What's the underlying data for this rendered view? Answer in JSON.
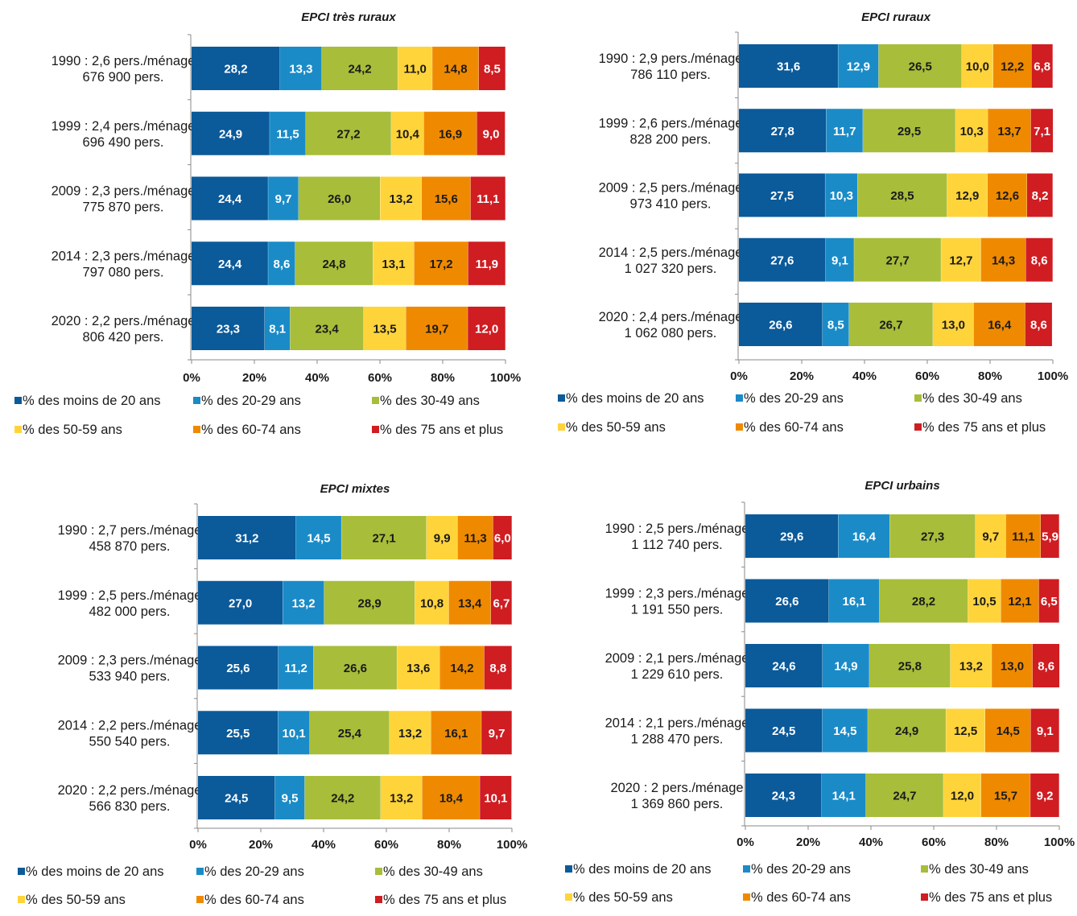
{
  "series_names": [
    "% des moins de 20 ans",
    "% des 20-29 ans",
    "% des 30-49 ans",
    "% des 50-59 ans",
    "% des 60-74 ans",
    "% des 75 ans et plus"
  ],
  "series_colors": [
    "#0b5a9a",
    "#1a8bc7",
    "#a8bd3a",
    "#ffd43b",
    "#ef8a00",
    "#cf1d22"
  ],
  "label_colors": [
    "#ffffff",
    "#ffffff",
    "#1a1a1a",
    "#1a1a1a",
    "#1a1a1a",
    "#ffffff"
  ],
  "chart_data": [
    {
      "type": "bar",
      "orientation": "horizontal-stacked-100",
      "title": "EPCI très ruraux",
      "xlim": [
        0,
        100
      ],
      "x_ticks": [
        "0%",
        "20%",
        "40%",
        "60%",
        "80%",
        "100%"
      ],
      "rows": [
        {
          "line1": "1990 : 2,6 pers./ménage",
          "line2": "676 900 pers.",
          "values": [
            28.2,
            13.3,
            24.2,
            11.0,
            14.8,
            8.5
          ],
          "labels": [
            "28,2",
            "13,3",
            "24,2",
            "11,0",
            "14,8",
            "8,5"
          ]
        },
        {
          "line1": "1999 : 2,4 pers./ménage",
          "line2": "696 490 pers.",
          "values": [
            24.9,
            11.5,
            27.2,
            10.4,
            16.9,
            9.0
          ],
          "labels": [
            "24,9",
            "11,5",
            "27,2",
            "10,4",
            "16,9",
            "9,0"
          ]
        },
        {
          "line1": "2009 : 2,3 pers./ménage",
          "line2": "775 870 pers.",
          "values": [
            24.4,
            9.7,
            26.0,
            13.2,
            15.6,
            11.1
          ],
          "labels": [
            "24,4",
            "9,7",
            "26,0",
            "13,2",
            "15,6",
            "11,1"
          ]
        },
        {
          "line1": "2014 : 2,3 pers./ménage",
          "line2": "797 080 pers.",
          "values": [
            24.4,
            8.6,
            24.8,
            13.1,
            17.2,
            11.9
          ],
          "labels": [
            "24,4",
            "8,6",
            "24,8",
            "13,1",
            "17,2",
            "11,9"
          ]
        },
        {
          "line1": "2020 : 2,2 pers./ménage",
          "line2": "806 420 pers.",
          "values": [
            23.3,
            8.1,
            23.4,
            13.5,
            19.7,
            12.0
          ],
          "labels": [
            "23,3",
            "8,1",
            "23,4",
            "13,5",
            "19,7",
            "12,0"
          ]
        }
      ]
    },
    {
      "type": "bar",
      "orientation": "horizontal-stacked-100",
      "title": "EPCI ruraux",
      "xlim": [
        0,
        100
      ],
      "x_ticks": [
        "0%",
        "20%",
        "40%",
        "60%",
        "80%",
        "100%"
      ],
      "rows": [
        {
          "line1": "1990 : 2,9 pers./ménage",
          "line2": "786 110 pers.",
          "values": [
            31.6,
            12.9,
            26.5,
            10.0,
            12.2,
            6.8
          ],
          "labels": [
            "31,6",
            "12,9",
            "26,5",
            "10,0",
            "12,2",
            "6,8"
          ]
        },
        {
          "line1": "1999 : 2,6 pers./ménage",
          "line2": "828 200 pers.",
          "values": [
            27.8,
            11.7,
            29.5,
            10.3,
            13.7,
            7.1
          ],
          "labels": [
            "27,8",
            "11,7",
            "29,5",
            "10,3",
            "13,7",
            "7,1"
          ]
        },
        {
          "line1": "2009 : 2,5 pers./ménage",
          "line2": "973 410 pers.",
          "values": [
            27.5,
            10.3,
            28.5,
            12.9,
            12.6,
            8.2
          ],
          "labels": [
            "27,5",
            "10,3",
            "28,5",
            "12,9",
            "12,6",
            "8,2"
          ]
        },
        {
          "line1": "2014 : 2,5 pers./ménage",
          "line2": "1 027 320 pers.",
          "values": [
            27.6,
            9.1,
            27.7,
            12.7,
            14.3,
            8.6
          ],
          "labels": [
            "27,6",
            "9,1",
            "27,7",
            "12,7",
            "14,3",
            "8,6"
          ]
        },
        {
          "line1": "2020 : 2,4 pers./ménage",
          "line2": "1 062 080 pers.",
          "values": [
            26.6,
            8.5,
            26.7,
            13.0,
            16.4,
            8.6
          ],
          "labels": [
            "26,6",
            "8,5",
            "26,7",
            "13,0",
            "16,4",
            "8,6"
          ]
        }
      ]
    },
    {
      "type": "bar",
      "orientation": "horizontal-stacked-100",
      "title": "EPCI mixtes",
      "xlim": [
        0,
        100
      ],
      "x_ticks": [
        "0%",
        "20%",
        "40%",
        "60%",
        "80%",
        "100%"
      ],
      "rows": [
        {
          "line1": "1990 : 2,7 pers./ménage",
          "line2": "458 870 pers.",
          "values": [
            31.2,
            14.5,
            27.1,
            9.9,
            11.3,
            6.0
          ],
          "labels": [
            "31,2",
            "14,5",
            "27,1",
            "9,9",
            "11,3",
            "6,0"
          ]
        },
        {
          "line1": "1999 : 2,5 pers./ménage",
          "line2": "482 000 pers.",
          "values": [
            27.0,
            13.2,
            28.9,
            10.8,
            13.4,
            6.7
          ],
          "labels": [
            "27,0",
            "13,2",
            "28,9",
            "10,8",
            "13,4",
            "6,7"
          ]
        },
        {
          "line1": "2009 : 2,3 pers./ménage",
          "line2": "533 940 pers.",
          "values": [
            25.6,
            11.2,
            26.6,
            13.6,
            14.2,
            8.8
          ],
          "labels": [
            "25,6",
            "11,2",
            "26,6",
            "13,6",
            "14,2",
            "8,8"
          ]
        },
        {
          "line1": "2014 : 2,2 pers./ménage",
          "line2": "550 540 pers.",
          "values": [
            25.5,
            10.1,
            25.4,
            13.2,
            16.1,
            9.7
          ],
          "labels": [
            "25,5",
            "10,1",
            "25,4",
            "13,2",
            "16,1",
            "9,7"
          ]
        },
        {
          "line1": "2020 : 2,2 pers./ménage",
          "line2": "566 830 pers.",
          "values": [
            24.5,
            9.5,
            24.2,
            13.2,
            18.4,
            10.1
          ],
          "labels": [
            "24,5",
            "9,5",
            "24,2",
            "13,2",
            "18,4",
            "10,1"
          ]
        }
      ]
    },
    {
      "type": "bar",
      "orientation": "horizontal-stacked-100",
      "title": "EPCI urbains",
      "xlim": [
        0,
        100
      ],
      "x_ticks": [
        "0%",
        "20%",
        "40%",
        "60%",
        "80%",
        "100%"
      ],
      "rows": [
        {
          "line1": "1990 : 2,5 pers./ménage",
          "line2": "1 112 740 pers.",
          "values": [
            29.6,
            16.4,
            27.3,
            9.7,
            11.1,
            5.9
          ],
          "labels": [
            "29,6",
            "16,4",
            "27,3",
            "9,7",
            "11,1",
            "5,9"
          ]
        },
        {
          "line1": "1999 : 2,3 pers./ménage",
          "line2": "1 191 550 pers.",
          "values": [
            26.6,
            16.1,
            28.2,
            10.5,
            12.1,
            6.5
          ],
          "labels": [
            "26,6",
            "16,1",
            "28,2",
            "10,5",
            "12,1",
            "6,5"
          ]
        },
        {
          "line1": "2009 : 2,1 pers./ménage",
          "line2": "1 229 610 pers.",
          "values": [
            24.6,
            14.9,
            25.8,
            13.2,
            13.0,
            8.6
          ],
          "labels": [
            "24,6",
            "14,9",
            "25,8",
            "13,2",
            "13,0",
            "8,6"
          ]
        },
        {
          "line1": "2014 : 2,1 pers./ménage",
          "line2": "1 288 470 pers.",
          "values": [
            24.5,
            14.5,
            24.9,
            12.5,
            14.5,
            9.1
          ],
          "labels": [
            "24,5",
            "14,5",
            "24,9",
            "12,5",
            "14,5",
            "9,1"
          ]
        },
        {
          "line1": "2020 : 2 pers./ménage",
          "line2": "1 369 860 pers.",
          "values": [
            24.3,
            14.1,
            24.7,
            12.0,
            15.7,
            9.2
          ],
          "labels": [
            "24,3",
            "14,1",
            "24,7",
            "12,0",
            "15,7",
            "9,2"
          ]
        }
      ]
    }
  ]
}
